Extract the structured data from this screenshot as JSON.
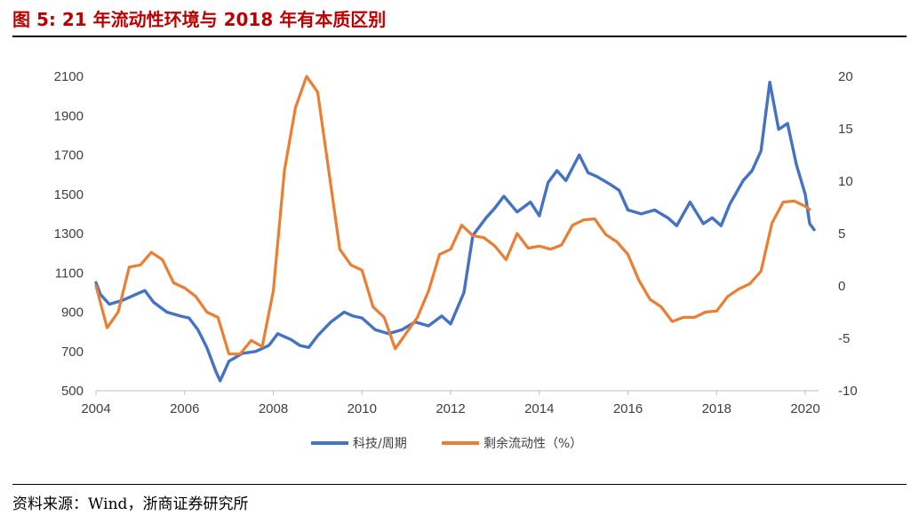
{
  "header": {
    "title": "图  5: 21 年流动性环境与 2018 年有本质区别"
  },
  "footer": {
    "source": "资料来源：Wind，浙商证券研究所"
  },
  "colors": {
    "title": "#c00000",
    "tech": "#4472c4",
    "liquidity": "#ed7d31",
    "axis": "#404040"
  },
  "chart_data": {
    "type": "line",
    "title": "",
    "x_ticks": [
      "2004",
      "2006",
      "2008",
      "2010",
      "2012",
      "2014",
      "2016",
      "2018",
      "2020"
    ],
    "x_range": [
      2004.0,
      2020.3
    ],
    "y_left": {
      "ticks": [
        "500",
        "700",
        "900",
        "1100",
        "1300",
        "1500",
        "1700",
        "1900",
        "2100"
      ],
      "range": [
        500,
        2100
      ]
    },
    "y_right": {
      "ticks": [
        "-10",
        "-5",
        "0",
        "5",
        "10",
        "15",
        "20"
      ],
      "range": [
        -10,
        20
      ]
    },
    "legend_position": "bottom",
    "series": [
      {
        "name": "科技/周期",
        "axis": "left",
        "color": "#4472c4",
        "x": [
          2004.0,
          2004.1,
          2004.3,
          2004.6,
          2004.9,
          2005.1,
          2005.3,
          2005.6,
          2005.9,
          2006.1,
          2006.3,
          2006.5,
          2006.7,
          2006.8,
          2007.0,
          2007.3,
          2007.6,
          2007.9,
          2008.1,
          2008.4,
          2008.6,
          2008.8,
          2009.0,
          2009.3,
          2009.6,
          2009.8,
          2010.0,
          2010.3,
          2010.6,
          2010.9,
          2011.2,
          2011.5,
          2011.8,
          2012.0,
          2012.3,
          2012.5,
          2012.8,
          2013.0,
          2013.2,
          2013.5,
          2013.8,
          2014.0,
          2014.2,
          2014.4,
          2014.6,
          2014.9,
          2015.1,
          2015.3,
          2015.6,
          2015.8,
          2016.0,
          2016.3,
          2016.6,
          2016.9,
          2017.1,
          2017.4,
          2017.7,
          2017.9,
          2018.1,
          2018.3,
          2018.6,
          2018.8,
          2019.0,
          2019.2,
          2019.4,
          2019.6,
          2019.8,
          2020.0,
          2020.1,
          2020.2
        ],
        "y": [
          1050,
          990,
          940,
          960,
          990,
          1010,
          950,
          900,
          880,
          870,
          810,
          720,
          600,
          550,
          650,
          690,
          700,
          730,
          790,
          760,
          730,
          720,
          780,
          850,
          900,
          880,
          870,
          810,
          790,
          810,
          850,
          830,
          880,
          840,
          1000,
          1290,
          1380,
          1430,
          1490,
          1410,
          1460,
          1390,
          1560,
          1620,
          1570,
          1700,
          1610,
          1590,
          1550,
          1520,
          1420,
          1400,
          1420,
          1380,
          1340,
          1460,
          1350,
          1380,
          1340,
          1450,
          1570,
          1620,
          1720,
          2070,
          1830,
          1860,
          1650,
          1500,
          1350,
          1320
        ]
      },
      {
        "name": "剩余流动性（%）",
        "axis": "right",
        "color": "#ed7d31",
        "x": [
          2004.0,
          2004.25,
          2004.5,
          2004.75,
          2005.0,
          2005.25,
          2005.5,
          2005.75,
          2006.0,
          2006.25,
          2006.5,
          2006.75,
          2007.0,
          2007.25,
          2007.5,
          2007.75,
          2008.0,
          2008.25,
          2008.5,
          2008.75,
          2009.0,
          2009.25,
          2009.5,
          2009.75,
          2010.0,
          2010.25,
          2010.5,
          2010.75,
          2011.0,
          2011.25,
          2011.5,
          2011.75,
          2012.0,
          2012.25,
          2012.5,
          2012.75,
          2013.0,
          2013.25,
          2013.5,
          2013.75,
          2014.0,
          2014.25,
          2014.5,
          2014.75,
          2015.0,
          2015.25,
          2015.5,
          2015.75,
          2016.0,
          2016.25,
          2016.5,
          2016.75,
          2017.0,
          2017.25,
          2017.5,
          2017.75,
          2018.0,
          2018.25,
          2018.5,
          2018.75,
          2019.0,
          2019.25,
          2019.5,
          2019.75,
          2020.0,
          2020.1
        ],
        "y": [
          0.0,
          -4.0,
          -2.5,
          1.8,
          2.0,
          3.2,
          2.5,
          0.3,
          -0.2,
          -1.0,
          -2.5,
          -3.0,
          -6.5,
          -6.5,
          -5.2,
          -5.8,
          -0.5,
          11.0,
          17.0,
          20.0,
          18.5,
          11.0,
          3.5,
          2.0,
          1.5,
          -2.0,
          -3.0,
          -6.0,
          -4.5,
          -3.0,
          -0.5,
          3.0,
          3.5,
          5.8,
          4.8,
          4.6,
          3.8,
          2.5,
          5.0,
          3.6,
          3.8,
          3.5,
          3.9,
          5.8,
          6.3,
          6.4,
          4.9,
          4.2,
          3.0,
          0.5,
          -1.3,
          -2.0,
          -3.4,
          -3.0,
          -3.0,
          -2.5,
          -2.4,
          -1.0,
          -0.3,
          0.2,
          1.4,
          6.0,
          8.0,
          8.1,
          7.6,
          7.3
        ]
      }
    ]
  }
}
